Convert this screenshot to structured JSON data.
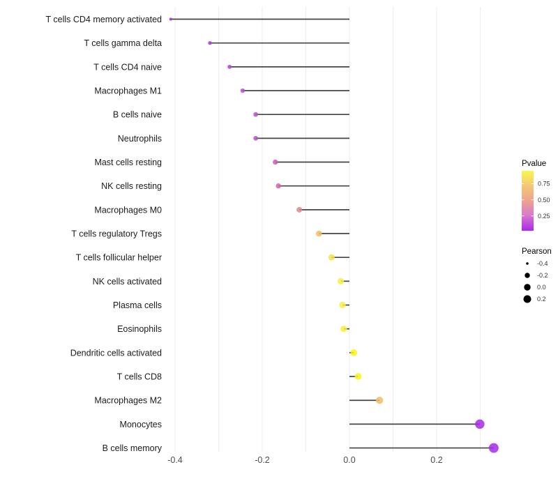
{
  "chart_data": {
    "type": "scatter",
    "subtype": "lollipop",
    "title": "",
    "xlabel": "",
    "ylabel": "",
    "x_axis": {
      "ticks": [
        "-0.4",
        "-0.2",
        "0.0",
        "0.2"
      ],
      "tick_values": [
        -0.4,
        -0.2,
        0.0,
        0.2
      ],
      "range": [
        -0.42,
        0.36
      ],
      "gridline_values": [
        -0.4,
        -0.3,
        -0.2,
        -0.1,
        0.0,
        0.1,
        0.2,
        0.3
      ],
      "grid": true
    },
    "baseline_x": 0.0,
    "rows": [
      {
        "label": "T cells CD4 memory activated",
        "pearson": -0.41,
        "pvalue_approx": 0.04,
        "color": "#9c31d2"
      },
      {
        "label": "T cells gamma delta",
        "pearson": -0.32,
        "pvalue_approx": 0.1,
        "color": "#a83bdc"
      },
      {
        "label": "T cells CD4 naive",
        "pearson": -0.275,
        "pvalue_approx": 0.13,
        "color": "#ae45d8"
      },
      {
        "label": "Macrophages M1",
        "pearson": -0.245,
        "pvalue_approx": 0.16,
        "color": "#b34cd3"
      },
      {
        "label": "B cells naive",
        "pearson": -0.215,
        "pvalue_approx": 0.19,
        "color": "#b951cd"
      },
      {
        "label": "Neutrophils",
        "pearson": -0.215,
        "pvalue_approx": 0.19,
        "color": "#b951cd"
      },
      {
        "label": "Mast cells resting",
        "pearson": -0.17,
        "pvalue_approx": 0.28,
        "color": "#c75eb8"
      },
      {
        "label": "NK cells resting",
        "pearson": -0.163,
        "pvalue_approx": 0.32,
        "color": "#ce65ab"
      },
      {
        "label": "Macrophages M0",
        "pearson": -0.115,
        "pvalue_approx": 0.48,
        "color": "#dc8a87"
      },
      {
        "label": "T cells regulatory  Tregs",
        "pearson": -0.07,
        "pvalue_approx": 0.62,
        "color": "#eec162"
      },
      {
        "label": "T cells follicular helper",
        "pearson": -0.041,
        "pvalue_approx": 0.78,
        "color": "#f6e049"
      },
      {
        "label": "NK cells activated",
        "pearson": -0.02,
        "pvalue_approx": 0.85,
        "color": "#f9ee44"
      },
      {
        "label": "Plasma cells",
        "pearson": -0.016,
        "pvalue_approx": 0.86,
        "color": "#f9ee44"
      },
      {
        "label": "Eosinophils",
        "pearson": -0.013,
        "pvalue_approx": 0.87,
        "color": "#f9ef3e"
      },
      {
        "label": "Dendritic cells activated",
        "pearson": 0.01,
        "pvalue_approx": 0.93,
        "color": "#fbf516"
      },
      {
        "label": "T cells CD8",
        "pearson": 0.02,
        "pvalue_approx": 0.93,
        "color": "#fbf516"
      },
      {
        "label": "Macrophages M2",
        "pearson": 0.069,
        "pvalue_approx": 0.63,
        "color": "#f0be69"
      },
      {
        "label": "Monocytes",
        "pearson": 0.299,
        "pvalue_approx": 0.08,
        "color": "#a32be8"
      },
      {
        "label": "B cells memory",
        "pearson": 0.331,
        "pvalue_approx": 0.07,
        "color": "#a52cea"
      }
    ],
    "legend_pvalue": {
      "title": "Pvalue",
      "tick_labels": [
        "0.75",
        "0.50",
        "0.25"
      ],
      "tick_values": [
        0.75,
        0.5,
        0.25
      ],
      "range": [
        0.02,
        0.95
      ],
      "gradient_stops": [
        {
          "offset": 0.0,
          "color": "#faf64e"
        },
        {
          "offset": 0.25,
          "color": "#f3c873"
        },
        {
          "offset": 0.5,
          "color": "#eda38e"
        },
        {
          "offset": 0.72,
          "color": "#db7ec6"
        },
        {
          "offset": 1.0,
          "color": "#a92bec"
        }
      ]
    },
    "legend_pearson": {
      "title": "Pearson",
      "entries": [
        {
          "label": "-0.4",
          "radius": 1.8
        },
        {
          "label": "-0.2",
          "radius": 3.7
        },
        {
          "label": "0.0",
          "radius": 4.7
        },
        {
          "label": "0.2",
          "radius": 5.5
        }
      ]
    },
    "styles": {
      "stem_color": "#454545",
      "grid_color": "#ededed",
      "axis_text_color": "#4d4d4d",
      "label_text_color": "#1b1b1b",
      "legend_text_color": "#333333",
      "point_opacity": 0.85,
      "background": "#ffffff"
    }
  }
}
